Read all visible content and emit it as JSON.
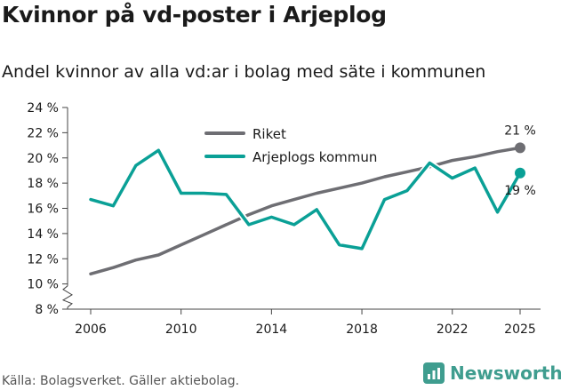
{
  "chart_data": {
    "type": "line",
    "title": "Kvinnor på vd-poster i Arjeplog",
    "subtitle": "Andel kvinnor av alla vd:ar i bolag med säte i kommunen",
    "xlabel": "",
    "ylabel": "",
    "xlim": [
      2006,
      2025
    ],
    "ylim": [
      8,
      24
    ],
    "yticks": [
      8,
      10,
      12,
      14,
      16,
      18,
      20,
      22,
      24
    ],
    "ytick_labels": [
      "8 %",
      "10 %",
      "12 %",
      "14 %",
      "16 %",
      "18 %",
      "20 %",
      "22 %",
      "24 %"
    ],
    "xticks": [
      2006,
      2010,
      2014,
      2018,
      2022,
      2025
    ],
    "xtick_labels": [
      "2006",
      "2010",
      "2014",
      "2018",
      "2022",
      "2025"
    ],
    "x": [
      2006,
      2007,
      2008,
      2009,
      2010,
      2011,
      2012,
      2013,
      2014,
      2015,
      2016,
      2017,
      2018,
      2019,
      2020,
      2021,
      2022,
      2023,
      2024,
      2025
    ],
    "series": [
      {
        "name": "Riket",
        "color": "#6e6e73",
        "values": [
          10.8,
          11.3,
          11.9,
          12.3,
          13.1,
          13.9,
          14.7,
          15.5,
          16.2,
          16.7,
          17.2,
          17.6,
          18.0,
          18.5,
          18.9,
          19.3,
          19.8,
          20.1,
          20.5,
          20.8
        ],
        "end_label": "21 %"
      },
      {
        "name": "Arjeplogs kommun",
        "color": "#0aa096",
        "values": [
          16.7,
          16.2,
          19.4,
          20.6,
          17.2,
          17.2,
          17.1,
          14.7,
          15.3,
          14.7,
          15.9,
          13.1,
          12.8,
          16.7,
          17.4,
          19.6,
          18.4,
          19.2,
          15.7,
          18.8
        ],
        "end_label": "19 %"
      }
    ],
    "legend_position": "top-center",
    "axis_break": true,
    "grid": false
  },
  "footer": {
    "source": "Källa: Bolagsverket. Gäller aktiebolag.",
    "brand": "Newsworthy"
  },
  "colors": {
    "brand": "#3f9d8f"
  }
}
